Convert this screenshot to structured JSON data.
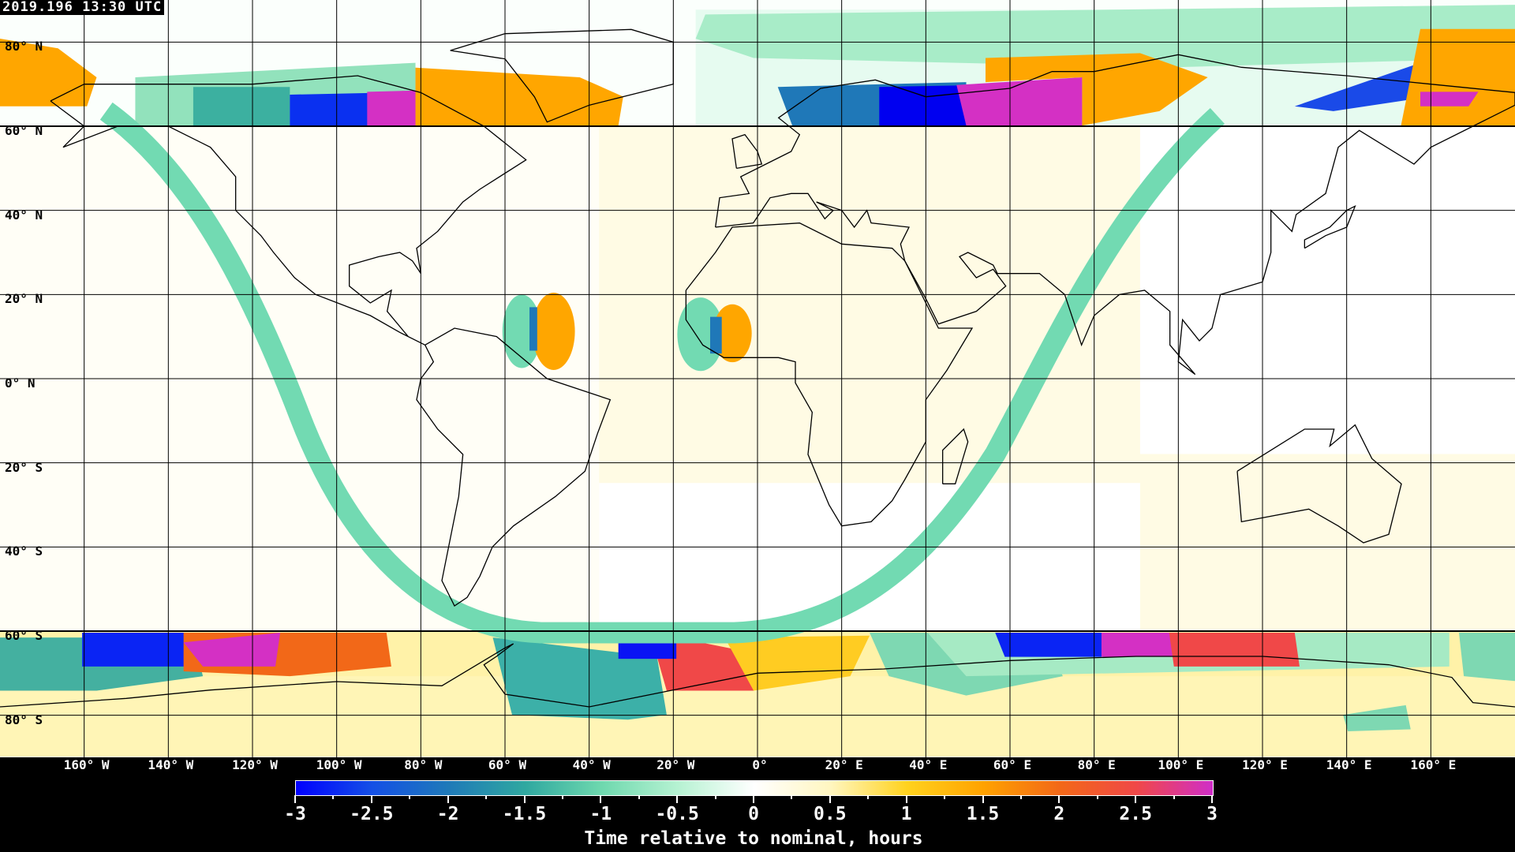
{
  "timestamp": "2019.196 13:30 UTC",
  "lat_labels": [
    "80° N",
    "60° N",
    "40° N",
    "20° N",
    "0° N",
    "20° S",
    "40° S",
    "60° S",
    "80° S"
  ],
  "lon_labels": [
    "160° W",
    "140° W",
    "120° W",
    "100° W",
    "80° W",
    "60° W",
    "40° W",
    "20° W",
    "0°",
    "20° E",
    "40° E",
    "60° E",
    "80° E",
    "100° E",
    "120° E",
    "140° E",
    "160° E"
  ],
  "colorbar": {
    "title": "Time relative to nominal, hours",
    "range": [
      -3,
      3
    ],
    "tick_labels": [
      "-3",
      "-2.5",
      "-2",
      "-1.5",
      "-1",
      "-0.5",
      "0",
      "0.5",
      "1",
      "1.5",
      "2",
      "2.5",
      "3"
    ],
    "colors": [
      "#0000ff",
      "#1450e6",
      "#1f7ab8",
      "#30a8a0",
      "#6ed8ae",
      "#b6f2d2",
      "#ffffff",
      "#fff6c0",
      "#ffd21e",
      "#ffa200",
      "#f26818",
      "#f04848",
      "#d02ec8"
    ]
  },
  "projection": "equirectangular",
  "grid_spacing_degrees": 20
}
